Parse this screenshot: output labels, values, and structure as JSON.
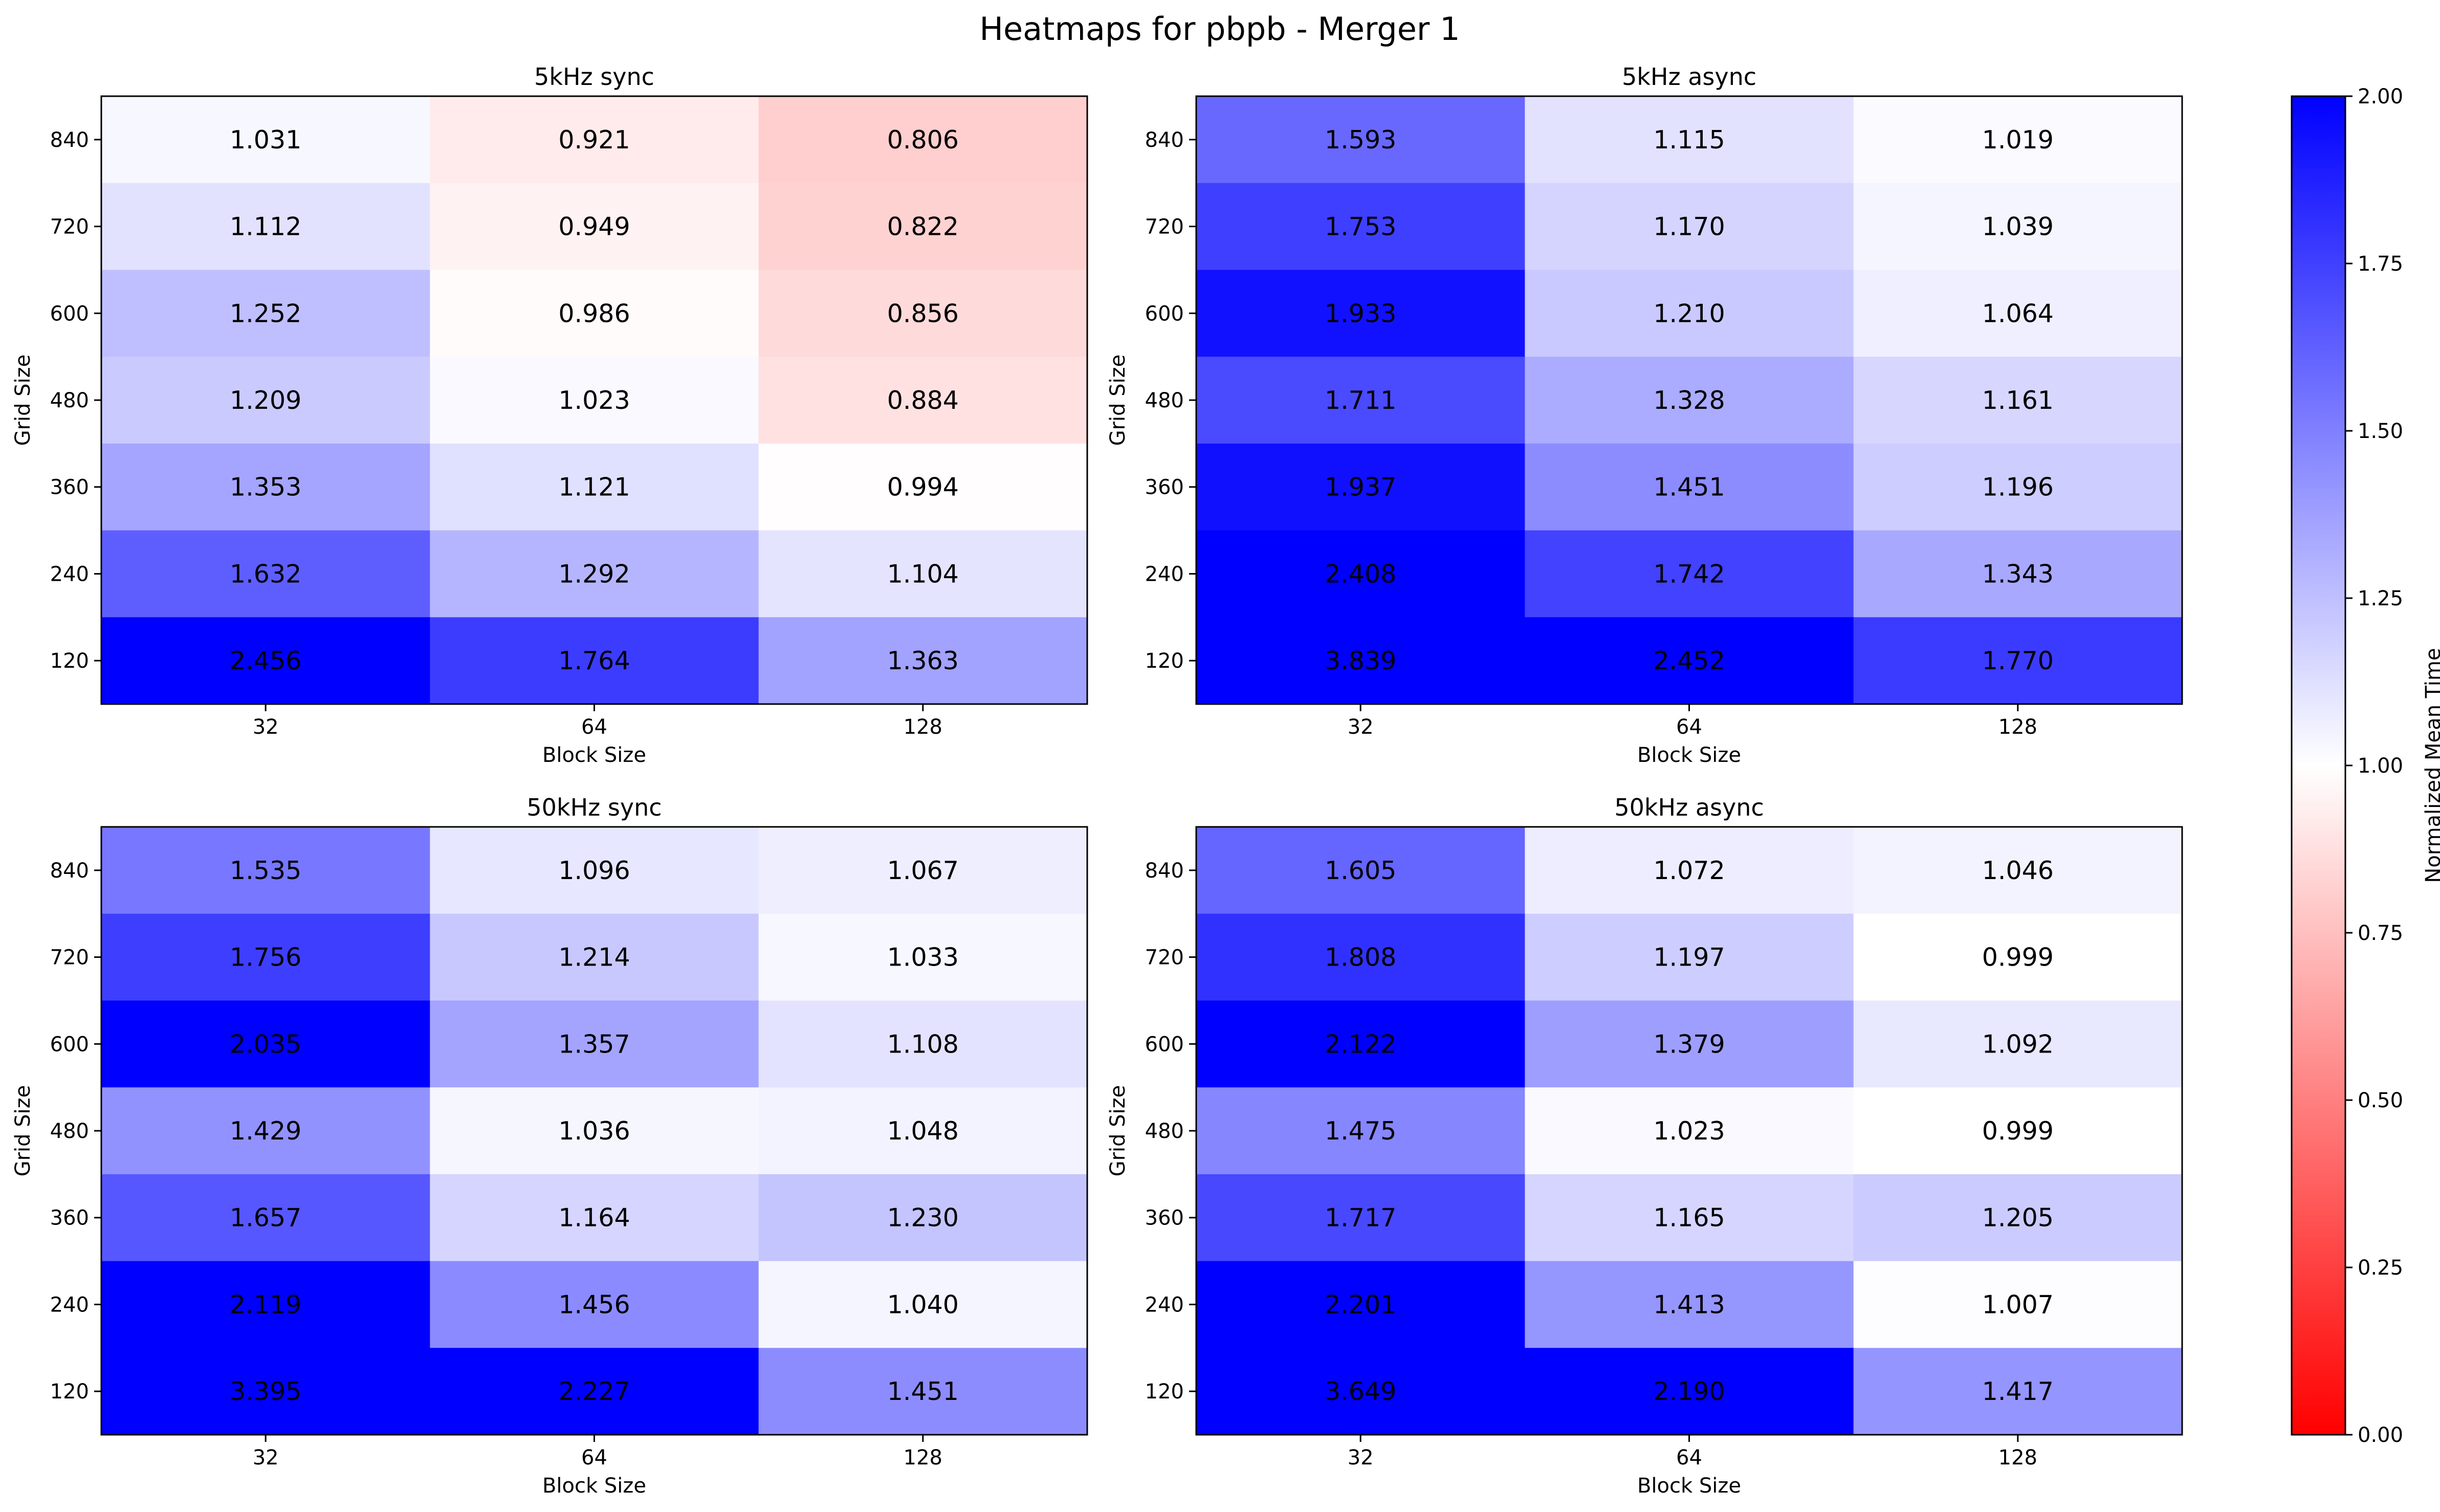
{
  "title": "Heatmaps for pbpb - Merger 1",
  "colorbar": {
    "label": "Normalized Mean Time",
    "min": 0,
    "max": 2,
    "center": 1,
    "ticks": [
      "0.00",
      "0.25",
      "0.50",
      "0.75",
      "1.00",
      "1.25",
      "1.50",
      "1.75",
      "2.00"
    ],
    "colors": {
      "low": "#ff0000",
      "mid": "#ffffff",
      "high": "#0000ff"
    }
  },
  "chart_data": [
    {
      "type": "heatmap",
      "title": "5kHz sync",
      "xlabel": "Block Size",
      "ylabel": "Grid Size",
      "x": [
        "32",
        "64",
        "128"
      ],
      "y": [
        "840",
        "720",
        "600",
        "480",
        "360",
        "240",
        "120"
      ],
      "values": [
        [
          "1.031",
          "0.921",
          "0.806"
        ],
        [
          "1.112",
          "0.949",
          "0.822"
        ],
        [
          "1.252",
          "0.986",
          "0.856"
        ],
        [
          "1.209",
          "1.023",
          "0.884"
        ],
        [
          "1.353",
          "1.121",
          "0.994"
        ],
        [
          "1.632",
          "1.292",
          "1.104"
        ],
        [
          "2.456",
          "1.764",
          "1.363"
        ]
      ]
    },
    {
      "type": "heatmap",
      "title": "5kHz async",
      "xlabel": "Block Size",
      "ylabel": "Grid Size",
      "x": [
        "32",
        "64",
        "128"
      ],
      "y": [
        "840",
        "720",
        "600",
        "480",
        "360",
        "240",
        "120"
      ],
      "values": [
        [
          "1.593",
          "1.115",
          "1.019"
        ],
        [
          "1.753",
          "1.170",
          "1.039"
        ],
        [
          "1.933",
          "1.210",
          "1.064"
        ],
        [
          "1.711",
          "1.328",
          "1.161"
        ],
        [
          "1.937",
          "1.451",
          "1.196"
        ],
        [
          "2.408",
          "1.742",
          "1.343"
        ],
        [
          "3.839",
          "2.452",
          "1.770"
        ]
      ]
    },
    {
      "type": "heatmap",
      "title": "50kHz sync",
      "xlabel": "Block Size",
      "ylabel": "Grid Size",
      "x": [
        "32",
        "64",
        "128"
      ],
      "y": [
        "840",
        "720",
        "600",
        "480",
        "360",
        "240",
        "120"
      ],
      "values": [
        [
          "1.535",
          "1.096",
          "1.067"
        ],
        [
          "1.756",
          "1.214",
          "1.033"
        ],
        [
          "2.035",
          "1.357",
          "1.108"
        ],
        [
          "1.429",
          "1.036",
          "1.048"
        ],
        [
          "1.657",
          "1.164",
          "1.230"
        ],
        [
          "2.119",
          "1.456",
          "1.040"
        ],
        [
          "3.395",
          "2.227",
          "1.451"
        ]
      ]
    },
    {
      "type": "heatmap",
      "title": "50kHz async",
      "xlabel": "Block Size",
      "ylabel": "Grid Size",
      "x": [
        "32",
        "64",
        "128"
      ],
      "y": [
        "840",
        "720",
        "600",
        "480",
        "360",
        "240",
        "120"
      ],
      "values": [
        [
          "1.605",
          "1.072",
          "1.046"
        ],
        [
          "1.808",
          "1.197",
          "0.999"
        ],
        [
          "2.122",
          "1.379",
          "1.092"
        ],
        [
          "1.475",
          "1.023",
          "0.999"
        ],
        [
          "1.717",
          "1.165",
          "1.205"
        ],
        [
          "2.201",
          "1.413",
          "1.007"
        ],
        [
          "3.649",
          "2.190",
          "1.417"
        ]
      ]
    }
  ]
}
